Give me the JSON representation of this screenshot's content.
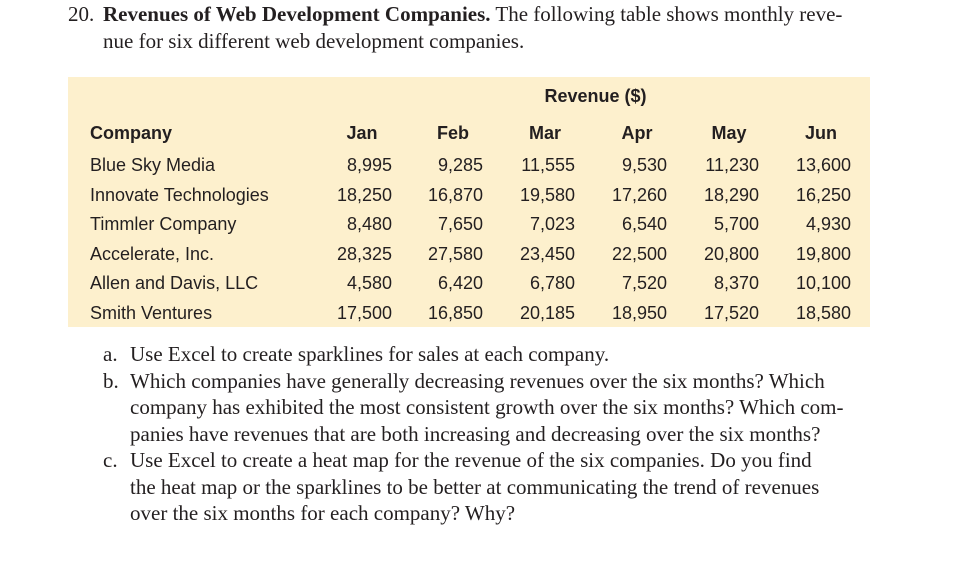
{
  "problem": {
    "number": "20.",
    "title": "Revenues of Web Development Companies.",
    "text_lines": [
      "The following table shows monthly reve-",
      "nue for six different web development companies."
    ]
  },
  "table": {
    "group_header": "Revenue ($)",
    "columns": [
      "Company",
      "Jan",
      "Feb",
      "Mar",
      "Apr",
      "May",
      "Jun"
    ],
    "rows": [
      [
        "Blue Sky Media",
        "8,995",
        "9,285",
        "11,555",
        "9,530",
        "11,230",
        "13,600"
      ],
      [
        "Innovate Technologies",
        "18,250",
        "16,870",
        "19,580",
        "17,260",
        "18,290",
        "16,250"
      ],
      [
        "Timmler Company",
        "8,480",
        "7,650",
        "7,023",
        "6,540",
        "5,700",
        "4,930"
      ],
      [
        "Accelerate, Inc.",
        "28,325",
        "27,580",
        "23,450",
        "22,500",
        "20,800",
        "19,800"
      ],
      [
        "Allen and Davis, LLC",
        "4,580",
        "6,420",
        "6,780",
        "7,520",
        "8,370",
        "10,100"
      ],
      [
        "Smith Ventures",
        "17,500",
        "16,850",
        "20,185",
        "18,950",
        "17,520",
        "18,580"
      ]
    ]
  },
  "questions": [
    {
      "label": "a.",
      "lines": [
        "Use Excel to create sparklines for sales at each company."
      ]
    },
    {
      "label": "b.",
      "lines": [
        "Which companies have generally decreasing revenues over the six months? Which",
        "company has exhibited the most consistent growth over the six months? Which com-",
        "panies have revenues that are both increasing and decreasing over the six months?"
      ]
    },
    {
      "label": "c.",
      "lines": [
        "Use Excel to create a heat map for the revenue of the six companies. Do you find",
        "the heat map or the sparklines to be better at communicating the trend of revenues",
        "over the six months for each company? Why?"
      ]
    }
  ]
}
